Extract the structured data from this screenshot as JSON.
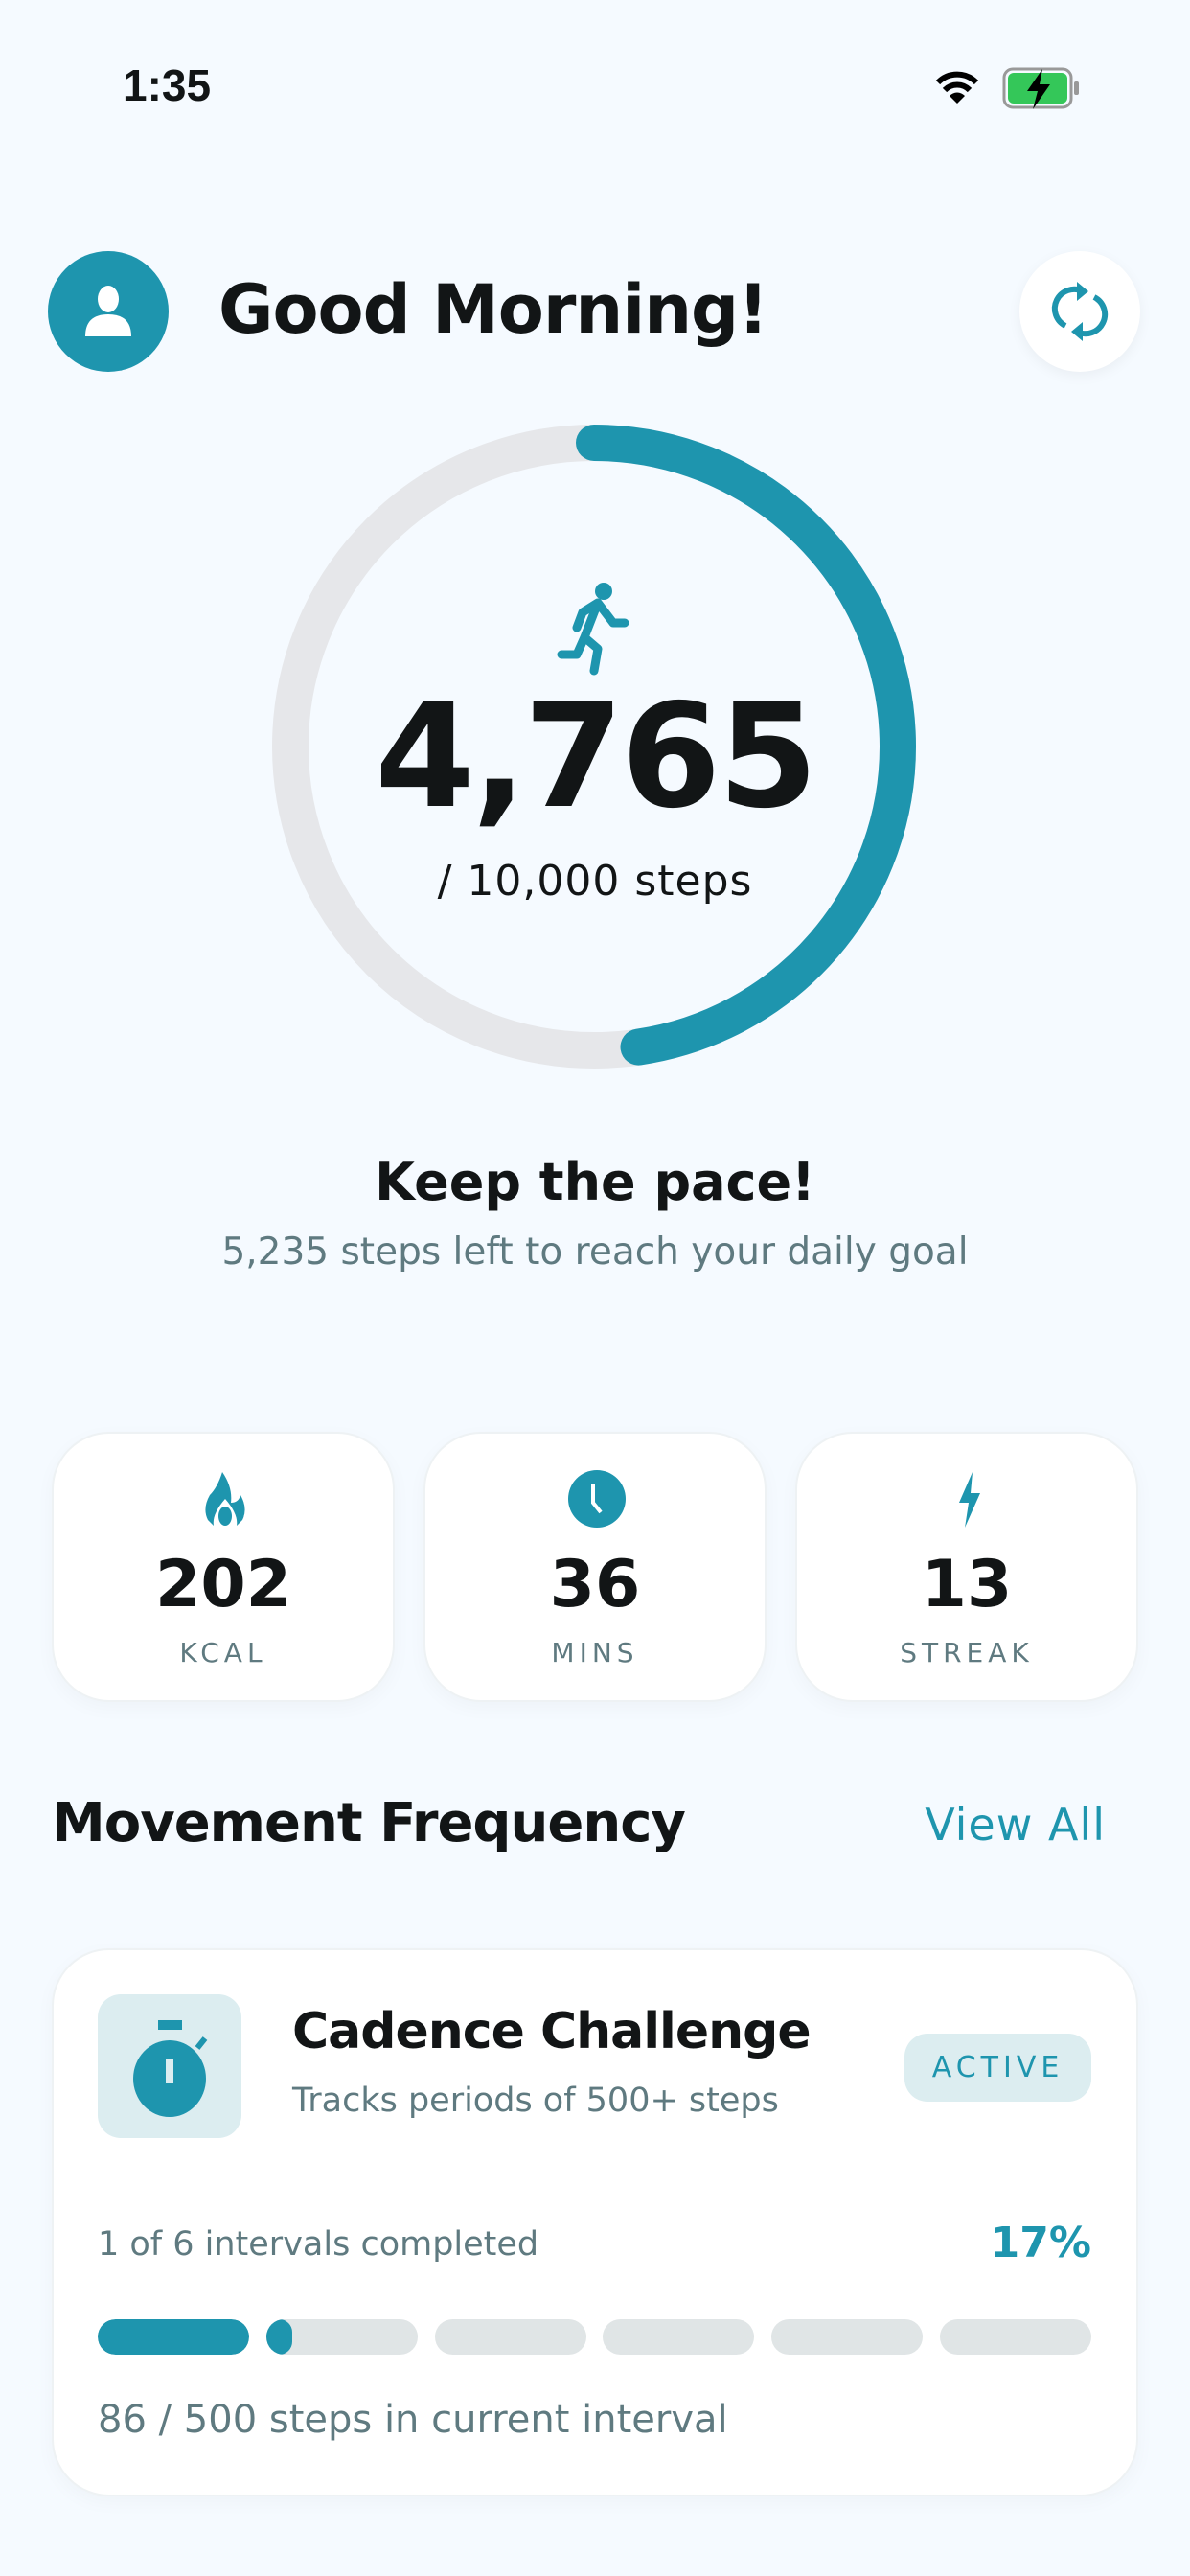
{
  "status_bar": {
    "time": "1:35",
    "battery_charging": true
  },
  "header": {
    "greeting": "Good Morning!",
    "avatar_icon": "user-icon",
    "refresh_icon": "refresh-icon"
  },
  "steps": {
    "count": "4,765",
    "goal_label": "/ 10,000 steps",
    "progress": 0.4765,
    "icon": "running-icon"
  },
  "motivation": {
    "title": "Keep the pace!",
    "subtitle": "5,235 steps left to reach your daily goal"
  },
  "stats": [
    {
      "icon": "flame-icon",
      "value": "202",
      "label": "KCAL"
    },
    {
      "icon": "clock-icon",
      "value": "36",
      "label": "MINS"
    },
    {
      "icon": "lightning-icon",
      "value": "13",
      "label": "STREAK"
    }
  ],
  "section": {
    "title": "Movement Frequency",
    "view_all": "View All"
  },
  "challenge": {
    "icon": "stopwatch-icon",
    "title": "Cadence Challenge",
    "subtitle": "Tracks periods of 500+ steps",
    "badge": "ACTIVE",
    "intervals_text": "1 of 6 intervals completed",
    "percent": "17%",
    "segments": [
      1,
      0.172,
      0,
      0,
      0,
      0
    ],
    "current_text": "86 / 500 steps in current interval"
  },
  "colors": {
    "accent": "#1e95ae",
    "background": "#f5faff",
    "track": "#e6e7ea"
  }
}
